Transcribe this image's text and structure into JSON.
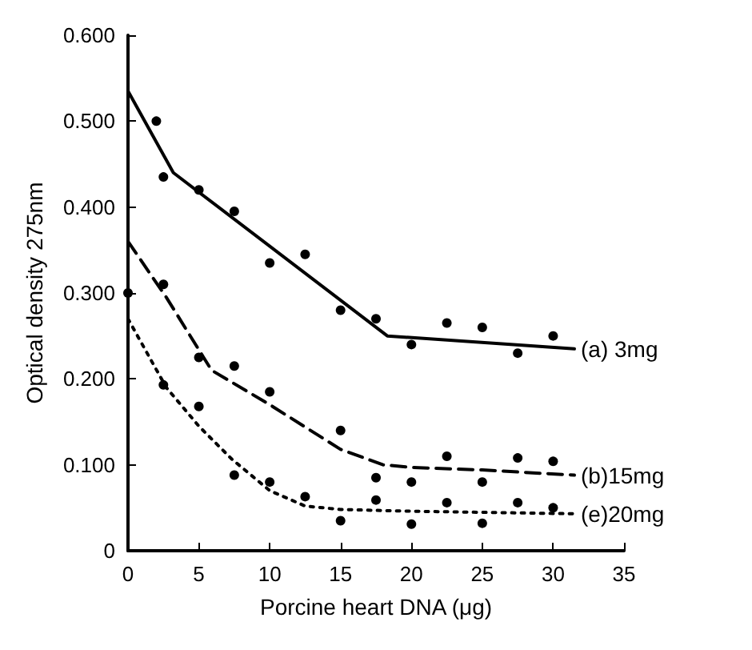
{
  "chart_data": {
    "type": "line",
    "xlabel": "Porcine heart DNA (μg)",
    "ylabel": "Optical density 275nm",
    "xlim": [
      0,
      35
    ],
    "xticks": [
      0,
      5,
      10,
      15,
      20,
      25,
      30,
      35
    ],
    "ylim": [
      0,
      0.6
    ],
    "yticks": [
      0,
      {
        "value": 0.1,
        "label": "0.100"
      },
      {
        "value": 0.2,
        "label": "0.200"
      },
      {
        "value": 0.3,
        "label": "0.300"
      },
      {
        "value": 0.4,
        "label": "0.400"
      },
      {
        "value": 0.5,
        "label": "0.500"
      },
      {
        "value": 0.6,
        "label": "0.600"
      }
    ],
    "grid": false,
    "legend": false,
    "series": [
      {
        "name": "(a) 3mg",
        "type": "line",
        "color": "#000000",
        "line_style": "solid",
        "marker": "none",
        "x": [
          0,
          3.2,
          18.3,
          31.5
        ],
        "values": [
          0.535,
          0.44,
          0.25,
          0.235
        ]
      },
      {
        "name": "(b)15mg",
        "type": "line",
        "color": "#000000",
        "line_style": "dashed",
        "marker": "none",
        "x": [
          0,
          2.7,
          5.9,
          10,
          15,
          18,
          20,
          25,
          31.5
        ],
        "values": [
          0.36,
          0.295,
          0.21,
          0.17,
          0.118,
          0.1,
          0.097,
          0.094,
          0.088
        ]
      },
      {
        "name": "(e)20mg",
        "type": "line",
        "color": "#000000",
        "line_style": "dotted",
        "marker": "none",
        "x": [
          0,
          2.7,
          5,
          7.3,
          10,
          12.5,
          15,
          20,
          31.5
        ],
        "values": [
          0.27,
          0.19,
          0.145,
          0.107,
          0.07,
          0.052,
          0.048,
          0.046,
          0.043
        ]
      },
      {
        "type": "scatter",
        "color": "#000000",
        "marker": "circle",
        "x": [
          2,
          2.5,
          5,
          7.5,
          10,
          12.5,
          15,
          17.5,
          20,
          22.5,
          25,
          27.5,
          30
        ],
        "values": [
          0.5,
          0.435,
          0.42,
          0.395,
          0.335,
          0.345,
          0.28,
          0.27,
          0.24,
          0.265,
          0.26,
          0.23,
          0.25
        ]
      },
      {
        "type": "scatter",
        "color": "#000000",
        "marker": "circle",
        "x": [
          0,
          2.5,
          5,
          7.5,
          10,
          15,
          17.5,
          20,
          22.5,
          25,
          27.5,
          30
        ],
        "values": [
          0.3,
          0.31,
          0.225,
          0.215,
          0.185,
          0.14,
          0.085,
          0.08,
          0.11,
          0.08,
          0.108,
          0.104
        ]
      },
      {
        "type": "scatter",
        "color": "#000000",
        "marker": "circle",
        "x": [
          2.5,
          5,
          7.5,
          10,
          12.5,
          15,
          17.5,
          20,
          22.5,
          25,
          27.5,
          30
        ],
        "values": [
          0.193,
          0.168,
          0.088,
          0.08,
          0.063,
          0.035,
          0.059,
          0.031,
          0.056,
          0.032,
          0.056,
          0.05
        ]
      }
    ]
  }
}
